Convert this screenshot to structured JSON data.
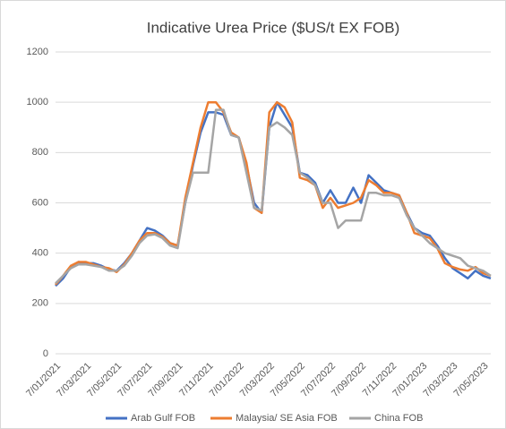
{
  "chart_data": {
    "type": "line",
    "title": "Indicative Urea Price ($US/t EX FOB)",
    "categories": [
      "7/01/2021",
      null,
      null,
      null,
      "7/03/2021",
      null,
      null,
      null,
      "7/05/2021",
      null,
      null,
      null,
      "7/07/2021",
      null,
      null,
      null,
      "7/09/2021",
      null,
      null,
      null,
      "7/11/2021",
      null,
      null,
      null,
      "7/01/2022",
      null,
      null,
      null,
      "7/03/2022",
      null,
      null,
      null,
      "7/05/2022",
      null,
      null,
      null,
      "7/07/2022",
      null,
      null,
      null,
      "7/09/2022",
      null,
      null,
      null,
      "7/11/2022",
      null,
      null,
      null,
      "7/01/2023",
      null,
      null,
      null,
      "7/03/2023",
      null,
      null,
      null,
      "7/05/2023",
      null
    ],
    "series": [
      {
        "name": "Arab Gulf FOB",
        "color": "#4472c4",
        "values": [
          270,
          300,
          345,
          365,
          360,
          360,
          350,
          335,
          330,
          360,
          400,
          450,
          500,
          490,
          470,
          440,
          430,
          600,
          750,
          880,
          960,
          960,
          950,
          870,
          860,
          750,
          600,
          560,
          900,
          1000,
          950,
          900,
          720,
          710,
          680,
          600,
          650,
          600,
          600,
          660,
          600,
          710,
          680,
          650,
          640,
          630,
          560,
          500,
          480,
          470,
          430,
          380,
          340,
          320,
          300,
          330,
          310,
          300
        ]
      },
      {
        "name": "Malaysia/ SE Asia FOB",
        "color": "#ed7d31",
        "values": [
          275,
          310,
          350,
          365,
          365,
          355,
          345,
          340,
          325,
          355,
          400,
          450,
          480,
          480,
          465,
          440,
          430,
          620,
          760,
          900,
          1000,
          1000,
          960,
          880,
          860,
          760,
          580,
          560,
          960,
          1000,
          980,
          920,
          700,
          690,
          670,
          580,
          620,
          580,
          590,
          600,
          620,
          690,
          670,
          640,
          640,
          630,
          560,
          480,
          470,
          460,
          420,
          360,
          345,
          335,
          330,
          345,
          320,
          310
        ]
      },
      {
        "name": "China FOB",
        "color": "#a5a5a5",
        "values": [
          280,
          310,
          340,
          355,
          355,
          350,
          345,
          330,
          330,
          350,
          390,
          440,
          470,
          475,
          460,
          430,
          420,
          600,
          720,
          720,
          720,
          970,
          970,
          870,
          860,
          720,
          580,
          570,
          900,
          920,
          900,
          870,
          720,
          700,
          670,
          600,
          600,
          500,
          530,
          530,
          530,
          640,
          640,
          630,
          630,
          620,
          550,
          500,
          470,
          440,
          420,
          400,
          390,
          380,
          350,
          340,
          330,
          310
        ]
      }
    ],
    "ylim": [
      0,
      1200
    ],
    "yticks": [
      0,
      200,
      400,
      600,
      800,
      1000,
      1200
    ],
    "grid": true,
    "legend": "bottom"
  }
}
